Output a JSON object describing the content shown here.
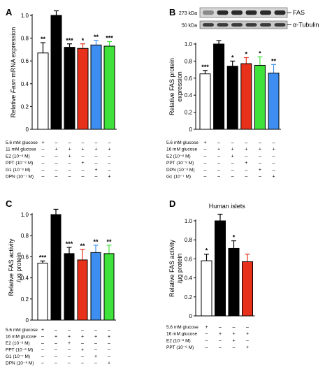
{
  "colors": {
    "white": "#ffffff",
    "black": "#000000",
    "red": "#e8311a",
    "blue": "#3d8ef0",
    "green": "#3fe23a"
  },
  "chart_data": [
    {
      "panel": "A",
      "type": "bar",
      "ylabel_parts": [
        "Relative ",
        "Fasn",
        " mRNA expression"
      ],
      "ylim": [
        0,
        1.0
      ],
      "yticks": [
        "0",
        "0.2",
        "0.4",
        "0.6",
        "0.8",
        "1.0"
      ],
      "bars": [
        {
          "value": 0.67,
          "error": 0.09,
          "color": "white",
          "sig": "**"
        },
        {
          "value": 1.0,
          "error": 0.04,
          "color": "black",
          "sig": ""
        },
        {
          "value": 0.72,
          "error": 0.03,
          "color": "black",
          "sig": "***"
        },
        {
          "value": 0.71,
          "error": 0.04,
          "color": "red",
          "sig": "*"
        },
        {
          "value": 0.74,
          "error": 0.04,
          "color": "blue",
          "sig": "**"
        },
        {
          "value": 0.73,
          "error": 0.04,
          "color": "green",
          "sig": "***"
        }
      ],
      "conditions": [
        {
          "label": "5.6 mM glucose",
          "marks": [
            "+",
            "–",
            "–",
            "–",
            "–",
            "–"
          ]
        },
        {
          "label": "11 mM glucose",
          "marks": [
            "–",
            "+",
            "+",
            "+",
            "+",
            "+"
          ]
        },
        {
          "label": "E2 (10⁻⁸ M)",
          "marks": [
            "–",
            "–",
            "+",
            "–",
            "–",
            "–"
          ]
        },
        {
          "label": "PPT (10⁻⁸ M)",
          "marks": [
            "–",
            "–",
            "–",
            "+",
            "–",
            "–"
          ]
        },
        {
          "label": "G1 (10⁻⁸ M)",
          "marks": [
            "–",
            "–",
            "–",
            "–",
            "+",
            "–"
          ]
        },
        {
          "label": "DPN (10⁻⁷ M)",
          "marks": [
            "–",
            "–",
            "–",
            "–",
            "–",
            "+"
          ]
        }
      ]
    },
    {
      "panel": "B",
      "type": "bar",
      "ylabel_lines": [
        "Relative FAS protein",
        "expression"
      ],
      "ylim": [
        0,
        1.0
      ],
      "yticks": [
        "0",
        "0.2",
        "0.4",
        "0.6",
        "0.8",
        "1.0"
      ],
      "blot": {
        "rows": [
          {
            "kda": "273 kDa",
            "name": "FAS"
          },
          {
            "kda": "50 kDa",
            "name": "α-Tubulin"
          }
        ]
      },
      "bars": [
        {
          "value": 0.65,
          "error": 0.04,
          "color": "white",
          "sig": "***"
        },
        {
          "value": 1.0,
          "error": 0.04,
          "color": "black",
          "sig": ""
        },
        {
          "value": 0.74,
          "error": 0.06,
          "color": "black",
          "sig": "*"
        },
        {
          "value": 0.77,
          "error": 0.07,
          "color": "red",
          "sig": "*"
        },
        {
          "value": 0.75,
          "error": 0.1,
          "color": "green",
          "sig": "*"
        },
        {
          "value": 0.66,
          "error": 0.1,
          "color": "blue",
          "sig": "**"
        }
      ],
      "conditions": [
        {
          "label": "5.6 mM glucose",
          "marks": [
            "+",
            "–",
            "–",
            "–",
            "–",
            "–"
          ]
        },
        {
          "label": "16 mM glucose",
          "marks": [
            "–",
            "+",
            "+",
            "+",
            "+",
            "+"
          ]
        },
        {
          "label": "E2 (10⁻⁸ M)",
          "marks": [
            "–",
            "–",
            "+",
            "–",
            "–",
            "–"
          ]
        },
        {
          "label": "PPT (10⁻⁸ M)",
          "marks": [
            "–",
            "–",
            "–",
            "+",
            "–",
            "–"
          ]
        },
        {
          "label": "DPN (10⁻⁸ M)",
          "marks": [
            "–",
            "–",
            "–",
            "–",
            "+",
            "–"
          ]
        },
        {
          "label": "G1 (10⁻⁷ M)",
          "marks": [
            "–",
            "–",
            "–",
            "–",
            "–",
            "+"
          ]
        }
      ]
    },
    {
      "panel": "C",
      "type": "bar",
      "ylabel_lines": [
        "Relative FAS activity",
        "/μg protein"
      ],
      "ylim": [
        0,
        1.0
      ],
      "yticks": [
        "0",
        "0.2",
        "0.4",
        "0.6",
        "0.8",
        "1.0"
      ],
      "bars": [
        {
          "value": 0.54,
          "error": 0.02,
          "color": "white",
          "sig": "***"
        },
        {
          "value": 1.0,
          "error": 0.05,
          "color": "black",
          "sig": ""
        },
        {
          "value": 0.63,
          "error": 0.06,
          "color": "black",
          "sig": "***"
        },
        {
          "value": 0.57,
          "error": 0.1,
          "color": "red",
          "sig": "**"
        },
        {
          "value": 0.64,
          "error": 0.07,
          "color": "blue",
          "sig": "**"
        },
        {
          "value": 0.63,
          "error": 0.08,
          "color": "green",
          "sig": "**"
        }
      ],
      "conditions": [
        {
          "label": "5.6 mM glucose",
          "marks": [
            "+",
            "–",
            "–",
            "–",
            "–",
            "–"
          ]
        },
        {
          "label": "16 mM glucose",
          "marks": [
            "–",
            "+",
            "+",
            "+",
            "+",
            "+"
          ]
        },
        {
          "label": "E2 (10⁻⁸ M)",
          "marks": [
            "–",
            "–",
            "+",
            "–",
            "–",
            "–"
          ]
        },
        {
          "label": "PPT (10⁻⁸ M)",
          "marks": [
            "–",
            "–",
            "–",
            "+",
            "–",
            "–"
          ]
        },
        {
          "label": "G1 (10⁻⁷ M)",
          "marks": [
            "–",
            "–",
            "–",
            "–",
            "+",
            "–"
          ]
        },
        {
          "label": "DPN (10⁻⁸ M)",
          "marks": [
            "–",
            "–",
            "–",
            "–",
            "–",
            "+"
          ]
        }
      ]
    },
    {
      "panel": "D",
      "type": "bar",
      "subtitle": "Human islets",
      "ylabel_lines": [
        "Relative FAS activity",
        "/μg protein"
      ],
      "ylim": [
        0,
        1.0
      ],
      "yticks": [
        "0",
        "0.2",
        "0.4",
        "0.6",
        "0.8",
        "1.0"
      ],
      "bars": [
        {
          "value": 0.58,
          "error": 0.07,
          "color": "white",
          "sig": "*"
        },
        {
          "value": 1.0,
          "error": 0.07,
          "color": "black",
          "sig": ""
        },
        {
          "value": 0.71,
          "error": 0.08,
          "color": "black",
          "sig": "*"
        },
        {
          "value": 0.57,
          "error": 0.08,
          "color": "red",
          "sig": ""
        }
      ],
      "conditions": [
        {
          "label": "5.6 mM glucose",
          "marks": [
            "+",
            "–",
            "–",
            "–"
          ]
        },
        {
          "label": "16 mM glucose",
          "marks": [
            "–",
            "+",
            "+",
            "+"
          ]
        },
        {
          "label": "E2 (10⁻⁸ M)",
          "marks": [
            "–",
            "–",
            "+",
            "–"
          ]
        },
        {
          "label": "PPT (10⁻⁸ M)",
          "marks": [
            "–",
            "–",
            "–",
            "+"
          ]
        }
      ]
    }
  ]
}
